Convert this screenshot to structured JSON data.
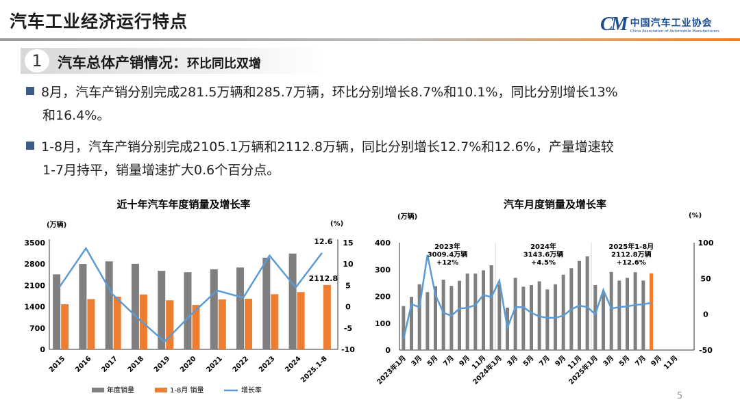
{
  "header": {
    "title": "汽车工业经济运行特点",
    "logo_mark": "CM",
    "logo_cn": "中国汽车工业协会",
    "logo_en": "China Association of Automobile Manufacturers"
  },
  "section": {
    "number": "1",
    "title": "汽车总体产销情况：",
    "subtitle": "环比同比双增"
  },
  "bullets": [
    {
      "line1": "8月，汽车产销分别完成281.5万辆和285.7万辆，环比分别增长8.7%和10.1%，同比分别增长13%",
      "line2": "和16.4%。"
    },
    {
      "line1": "1-8月，汽车产销分别完成2105.1万辆和2112.8万辆，同比分别增长12.7%和12.6%，产量增速较",
      "line2": "1-7月持平，销量增速扩大0.6个百分点。"
    }
  ],
  "page_number": "5",
  "colors": {
    "gray_bar": "#7f7f7f",
    "orange_bar": "#ed7d31",
    "line": "#5b9bd5",
    "accent": "#1d4e8f"
  },
  "chart_data": [
    {
      "type": "bar",
      "title": "近十年汽车年度销量及增长率",
      "ylabel": "(万辆)",
      "y2label": "(%)",
      "ylim": [
        0,
        3500
      ],
      "yticks": [
        0,
        700,
        1400,
        2100,
        2800,
        3500
      ],
      "y2lim": [
        -10,
        15
      ],
      "y2ticks": [
        -10,
        -5,
        0,
        5,
        10,
        15
      ],
      "categories": [
        "2015",
        "2016",
        "2017",
        "2018",
        "2019",
        "2020",
        "2021",
        "2022",
        "2023",
        "2024",
        "2025.1-8"
      ],
      "series": [
        {
          "name": "年度销量",
          "type": "bar",
          "axis": "left",
          "color": "#7f7f7f",
          "values": [
            2460,
            2803,
            2888,
            2808,
            2577,
            2531,
            2627,
            2686,
            3009,
            3144,
            null
          ]
        },
        {
          "name": "1-8月 销量",
          "type": "bar",
          "axis": "left",
          "color": "#ed7d31",
          "values": [
            1480,
            1650,
            1730,
            1800,
            1610,
            1456,
            1640,
            1660,
            1810,
            1880,
            2112.8
          ]
        },
        {
          "name": "增长率",
          "type": "line",
          "axis": "right",
          "color": "#5b9bd5",
          "values": [
            4.7,
            13.7,
            3.0,
            -2.8,
            -8.2,
            -1.9,
            3.8,
            2.1,
            12.0,
            4.5,
            12.6
          ]
        }
      ],
      "annotations": [
        "12.6",
        "2112.8"
      ],
      "legend": "bottom",
      "grid": false
    },
    {
      "type": "bar",
      "title": "汽车月度销量及增长率",
      "ylabel": "(万辆)",
      "y2label": "(%)",
      "ylim": [
        0,
        400
      ],
      "yticks": [
        0,
        100,
        200,
        300,
        400
      ],
      "y2lim": [
        -50,
        100
      ],
      "y2ticks": [
        -50,
        0,
        50,
        100
      ],
      "categories": [
        "2023年1月",
        "2月",
        "3月",
        "4月",
        "5月",
        "6月",
        "7月",
        "8月",
        "9月",
        "10月",
        "11月",
        "12月",
        "2024年1月",
        "2月",
        "3月",
        "4月",
        "5月",
        "6月",
        "7月",
        "8月",
        "9月",
        "10月",
        "11月",
        "12月",
        "2025年1月",
        "2月",
        "3月",
        "4月",
        "5月",
        "6月",
        "7月",
        "8月",
        "9月",
        "10月",
        "11月",
        "12月"
      ],
      "tick_labels": [
        "2023年1月",
        "3月",
        "5月",
        "7月",
        "9月",
        "11月",
        "2024年1月",
        "3月",
        "5月",
        "7月",
        "9月",
        "11月",
        "2025年1月",
        "3月",
        "5月",
        "7月",
        "9月",
        "11月"
      ],
      "series": [
        {
          "name": "销量",
          "type": "bar",
          "axis": "left",
          "values": [
            164,
            198,
            245,
            216,
            238,
            262,
            239,
            258,
            285,
            285,
            297,
            316,
            244,
            158,
            269,
            236,
            242,
            256,
            226,
            245,
            281,
            305,
            332,
            349,
            242,
            213,
            291,
            259,
            269,
            290,
            259,
            286,
            null,
            null,
            null,
            null
          ]
        },
        {
          "name": "增长率",
          "type": "line",
          "axis": "right",
          "color": "#5b9bd5",
          "values": [
            -35,
            14,
            10,
            83,
            27,
            2,
            -2,
            8,
            9,
            13,
            27,
            24,
            47,
            -19,
            10,
            10,
            2,
            -3,
            -5,
            -5,
            -2,
            7,
            12,
            10,
            0,
            34,
            8,
            10,
            11,
            13,
            14,
            16,
            null,
            null,
            null,
            null
          ]
        }
      ],
      "highlight_index": 31,
      "annotations": [
        {
          "lines": [
            "2023年",
            "3009.4万辆",
            "+12%"
          ]
        },
        {
          "lines": [
            "2024年",
            "3143.6万辆",
            "+4.5%"
          ]
        },
        {
          "lines": [
            "2025年1-8月",
            "2112.8万辆",
            "+12.6%"
          ]
        }
      ],
      "legend": "none",
      "grid": false
    }
  ]
}
